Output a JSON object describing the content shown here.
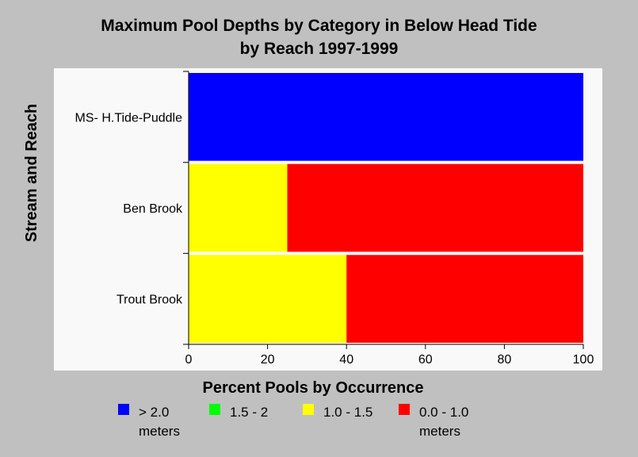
{
  "chart_data": {
    "type": "bar",
    "orientation": "horizontal",
    "stacked": true,
    "title": [
      "Maximum Pool Depths by Category in Below Head Tide",
      "by Reach 1997-1999"
    ],
    "xlabel": "Percent Pools by Occurrence",
    "ylabel": "Stream and Reach",
    "xlim": [
      0,
      100
    ],
    "xticks": [
      "0",
      "20",
      "40",
      "60",
      "80",
      "100"
    ],
    "categories": [
      "MS- H.Tide-Puddle",
      "Ben Brook",
      "Trout Brook"
    ],
    "series": [
      {
        "name": "> 2.0 meters",
        "color": "#0000ff",
        "values": [
          100,
          0,
          0
        ]
      },
      {
        "name": "1.5 - 2",
        "color": "#00ff00",
        "values": [
          0,
          0,
          0
        ]
      },
      {
        "name": "1.0 - 1.5",
        "color": "#ffff00",
        "values": [
          0,
          25,
          40
        ]
      },
      {
        "name": "0.0 - 1.0 meters",
        "color": "#ff0000",
        "values": [
          0,
          75,
          60
        ]
      }
    ],
    "legend": {
      "position": "bottom",
      "entries": [
        {
          "line1": "> 2.0",
          "line2": "meters",
          "color": "#0000ff"
        },
        {
          "line1": "1.5 - 2",
          "line2": "",
          "color": "#00ff00"
        },
        {
          "line1": "1.0 - 1.5",
          "line2": "",
          "color": "#ffff00"
        },
        {
          "line1": "0.0 - 1.0",
          "line2": "meters",
          "color": "#ff0000"
        }
      ]
    },
    "grid": false
  }
}
